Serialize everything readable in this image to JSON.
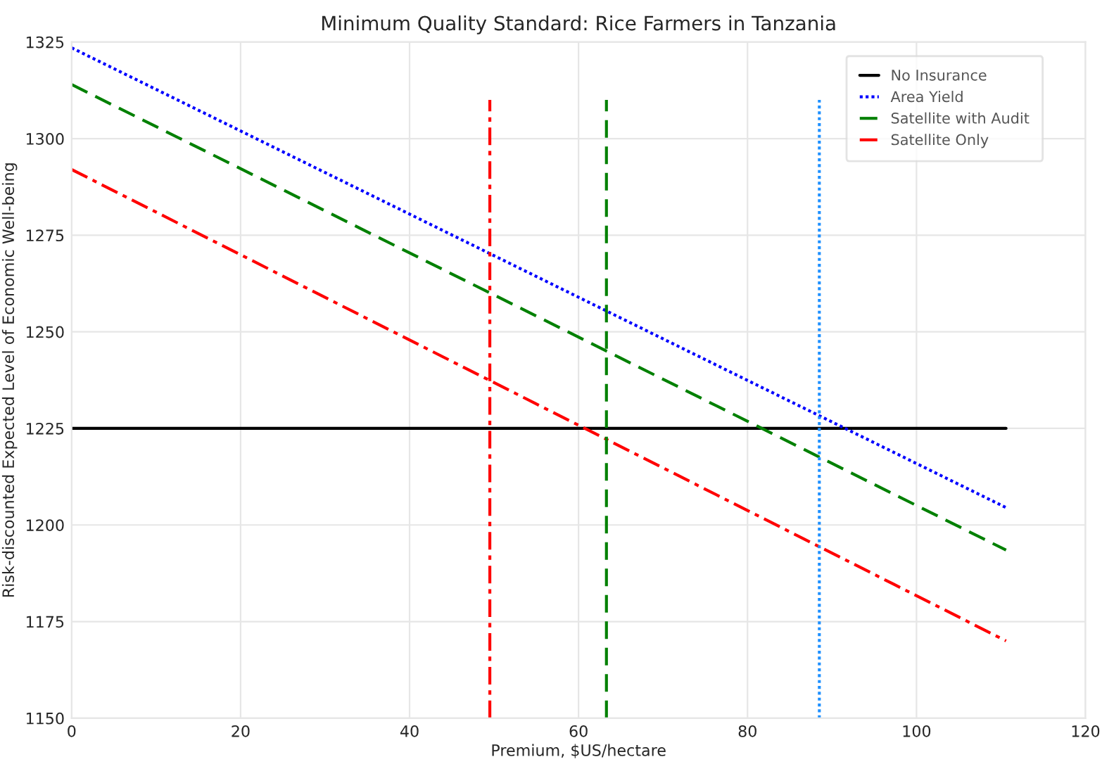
{
  "chart_data": {
    "type": "line",
    "title": "Minimum Quality Standard: Rice Farmers in Tanzania",
    "xlabel": "Premium, $US/hectare",
    "ylabel": "Risk-discounted Expected Level of Economic Well-being",
    "xlim": [
      0,
      120
    ],
    "xticks": [
      0,
      20,
      40,
      60,
      80,
      100,
      120
    ],
    "ylim": [
      1150,
      1325
    ],
    "yticks": [
      1150,
      1175,
      1200,
      1225,
      1250,
      1275,
      1300,
      1325
    ],
    "grid": true,
    "legend": "top right",
    "marker": "none",
    "series": [
      {
        "name": "No Insurance",
        "color": "#000000",
        "line_style": "solid",
        "x": [
          0,
          110.6
        ],
        "values": [
          1225,
          1225
        ]
      },
      {
        "name": "Area Yield",
        "color": "#0000ff",
        "line_style": "dotted",
        "x": [
          0,
          110.6
        ],
        "values": [
          1323.5,
          1204.5
        ]
      },
      {
        "name": "Satellite with Audit",
        "color": "#008000",
        "line_style": "dashed",
        "x": [
          0,
          110.6
        ],
        "values": [
          1314,
          1193.5
        ]
      },
      {
        "name": "Satellite Only",
        "color": "#ff0000",
        "line_style": "dashdot",
        "x": [
          0,
          110.6
        ],
        "values": [
          1292,
          1170
        ]
      },
      {
        "color": "#ff0000",
        "line_style": "dashdot",
        "x": [
          49.5,
          49.5
        ],
        "values": [
          1150,
          1310
        ]
      },
      {
        "color": "#008000",
        "line_style": "dashed",
        "x": [
          63.3,
          63.3
        ],
        "values": [
          1150,
          1310
        ]
      },
      {
        "color": "#1e90ff",
        "line_style": "dotted",
        "x": [
          88.5,
          88.5
        ],
        "values": [
          1150,
          1310
        ]
      }
    ]
  }
}
